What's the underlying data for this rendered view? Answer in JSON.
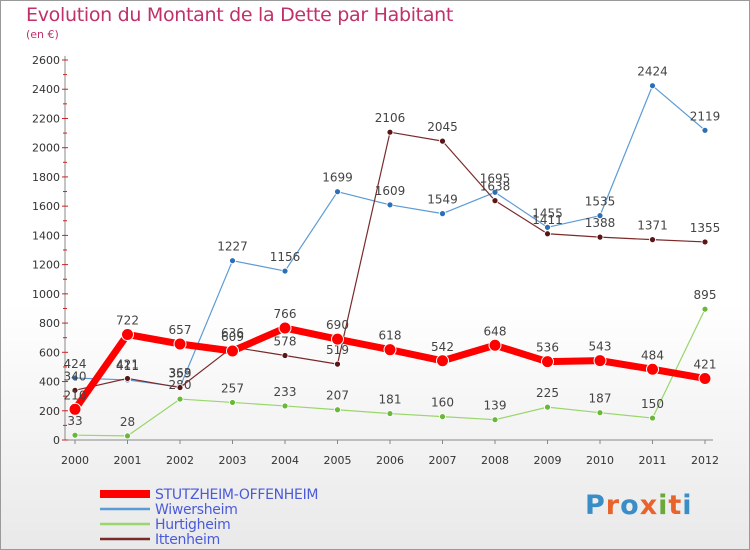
{
  "title": "Evolution du Montant de la Dette par Habitant",
  "subtitle": "(en €)",
  "logo": {
    "text": "Proxiti",
    "colors": [
      "#3a8ec8",
      "#e8642c",
      "#3a8ec8",
      "#e8642c",
      "#6aa83a",
      "#e8642c",
      "#3a8ec8"
    ]
  },
  "chart_data": {
    "type": "line",
    "x": [
      "2000",
      "2001",
      "2002",
      "2003",
      "2004",
      "2005",
      "2006",
      "2007",
      "2008",
      "2009",
      "2010",
      "2011",
      "2012"
    ],
    "ylim": [
      0,
      2600
    ],
    "yticks": [
      0,
      200,
      400,
      600,
      800,
      1000,
      1200,
      1400,
      1600,
      1800,
      2000,
      2200,
      2400,
      2600
    ],
    "legend_position": "bottom-left",
    "grid": false,
    "series": [
      {
        "name": "Wiwersheim",
        "color": "#5b9bd5",
        "point_color": "#2a6fb8",
        "width": 1.2,
        "radius": 3,
        "values": [
          424,
          411,
          363,
          1227,
          1156,
          1699,
          1609,
          1549,
          1695,
          1455,
          1535,
          2424,
          2119
        ],
        "labels": [
          "424",
          "411",
          "363",
          "1227",
          "1156",
          "1699",
          "1609",
          "1549",
          "1695",
          "1455",
          "1535",
          "2424",
          "2119"
        ]
      },
      {
        "name": "Hurtigheim",
        "color": "#99d66b",
        "point_color": "#6ab83a",
        "width": 1.2,
        "radius": 3,
        "values": [
          33,
          28,
          280,
          257,
          233,
          207,
          181,
          160,
          139,
          225,
          187,
          150,
          895
        ],
        "labels": [
          "33",
          "28",
          "280",
          "257",
          "233",
          "207",
          "181",
          "160",
          "139",
          "225",
          "187",
          "150",
          "895"
        ]
      },
      {
        "name": "Ittenheim",
        "color": "#7a2a2a",
        "point_color": "#5a1616",
        "width": 1.2,
        "radius": 3,
        "values": [
          340,
          421,
          359,
          636,
          578,
          519,
          2106,
          2045,
          1638,
          1411,
          1388,
          1371,
          1355
        ],
        "labels": [
          "340",
          "421",
          "359",
          "636",
          "578",
          "519",
          "2106",
          "2045",
          "1638",
          "1411",
          "1388",
          "1371",
          "1355"
        ]
      },
      {
        "name": "STUTZHEIM-OFFENHEIM",
        "color": "#ff0000",
        "point_color": "#ff0000",
        "width": 7,
        "radius": 6,
        "values": [
          210,
          722,
          657,
          609,
          766,
          690,
          618,
          542,
          648,
          536,
          543,
          484,
          421
        ],
        "labels": [
          "210",
          "722",
          "657",
          "609",
          "766",
          "690",
          "618",
          "542",
          "648",
          "536",
          "543",
          "484",
          "421"
        ]
      }
    ],
    "legend_order": [
      "STUTZHEIM-OFFENHEIM",
      "Wiwersheim",
      "Hurtigheim",
      "Ittenheim"
    ]
  }
}
